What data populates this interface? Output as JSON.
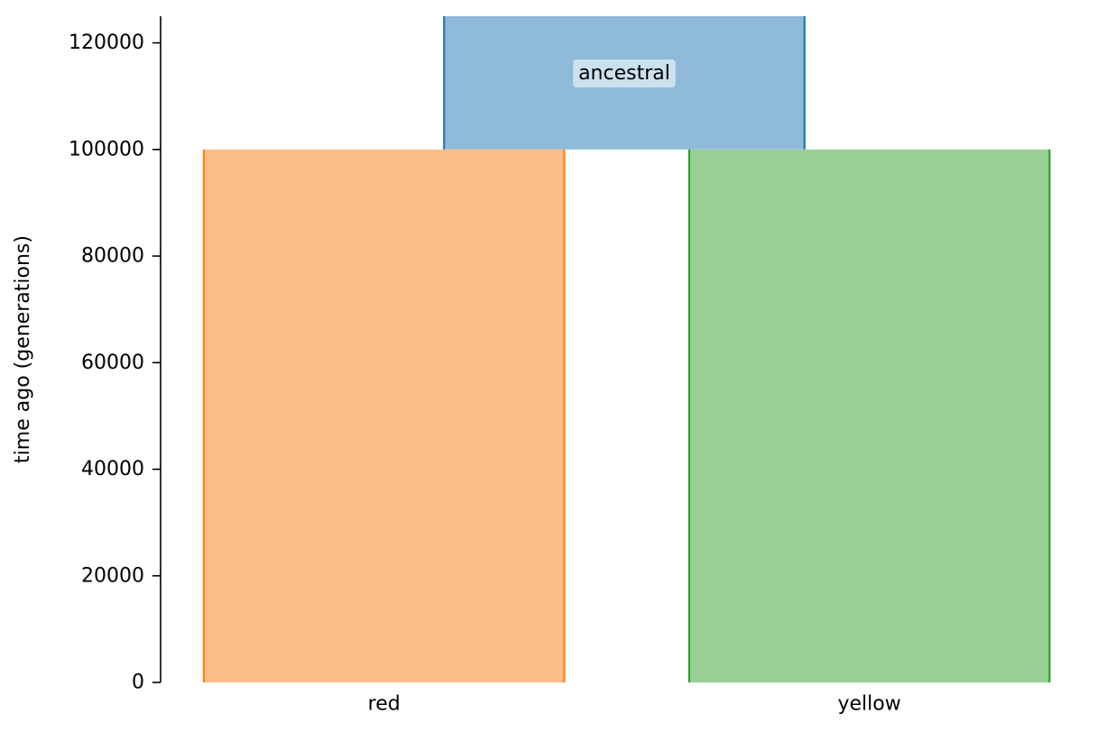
{
  "chart_data": {
    "type": "demography",
    "ylabel": "time ago (generations)",
    "ylim": [
      0,
      125000
    ],
    "yticks": [
      0,
      20000,
      40000,
      60000,
      80000,
      100000,
      120000
    ],
    "grid": false,
    "demes": [
      {
        "name": "ancestral",
        "start_time": 125000,
        "end_time": 100000,
        "x_range": [
          0.25,
          1.0
        ],
        "label_on_bar": true,
        "fill_color": "#8fbad9",
        "edge_color": "#1f77b4"
      },
      {
        "name": "red",
        "start_time": 100000,
        "end_time": 0,
        "x_range": [
          -0.25,
          0.5
        ],
        "label_on_bar": false,
        "fill_color": "#fdbd88",
        "edge_color": "#ff7f0e"
      },
      {
        "name": "yellow",
        "start_time": 100000,
        "end_time": 0,
        "x_range": [
          0.76,
          1.51
        ],
        "label_on_bar": false,
        "fill_color": "#97cf94",
        "edge_color": "#2ca02c"
      }
    ],
    "xticks": [
      {
        "label": "red",
        "x": 0.125
      },
      {
        "label": "yellow",
        "x": 1.135
      }
    ]
  }
}
